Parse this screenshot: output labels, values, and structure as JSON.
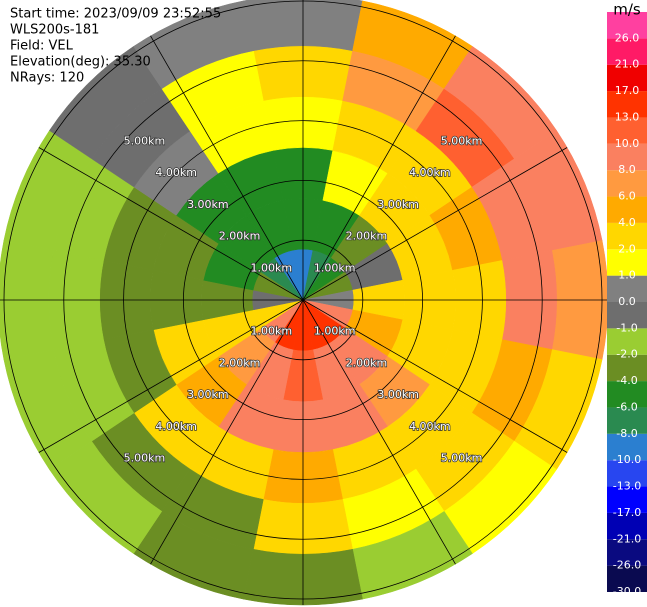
{
  "chart_data": {
    "type": "ppi",
    "info": [
      "Start time: 2023/09/09 23:52:55",
      "WLS200s-181",
      "Field: VEL",
      "Elevation(deg): 35.30",
      "NRays: 120"
    ],
    "rlim": [
      0,
      5.1
    ],
    "range_rings": [
      {
        "value": 1,
        "label": "1.00km"
      },
      {
        "value": 2,
        "label": "2.00km"
      },
      {
        "value": 3,
        "label": "3.00km"
      },
      {
        "value": 4,
        "label": "4.00km"
      },
      {
        "value": 5,
        "label": "5.00km"
      }
    ],
    "field": [
      [
        -9,
        -7,
        -5,
        -3,
        0,
        8,
        14,
        15,
        15,
        14,
        9,
        3,
        -1,
        -4,
        -7,
        -9
      ],
      [
        -6,
        -5,
        -4,
        -1,
        2,
        5,
        9,
        9,
        11,
        9,
        7,
        3,
        -3,
        -5,
        -6,
        -6
      ],
      [
        -5,
        1,
        2,
        2,
        2,
        3,
        6,
        9,
        9,
        8,
        5,
        2,
        -3,
        -4,
        -5,
        -5
      ],
      [
        1,
        2,
        2,
        5,
        3,
        3,
        2,
        2,
        4,
        2,
        2,
        -3,
        -3,
        -3,
        0,
        1
      ],
      [
        2,
        7,
        12,
        9,
        8,
        5,
        2,
        1,
        2,
        -3,
        -3,
        -2,
        -2,
        -2,
        -1,
        1
      ],
      [
        0,
        5,
        8,
        8,
        6,
        3,
        1,
        -2,
        -3,
        -3,
        -2,
        -2,
        -2,
        -2,
        -1,
        0
      ]
    ],
    "colorbar": {
      "title": "m/s",
      "ticks": [
        {
          "value": -30,
          "label": "-30.0"
        },
        {
          "value": -26,
          "label": "-26.0"
        },
        {
          "value": -21,
          "label": "-21.0"
        },
        {
          "value": -17,
          "label": "-17.0"
        },
        {
          "value": -13,
          "label": "-13.0"
        },
        {
          "value": -10,
          "label": "-10.0"
        },
        {
          "value": -8,
          "label": "-8.0"
        },
        {
          "value": -6,
          "label": "-6.0"
        },
        {
          "value": -4,
          "label": "-4.0"
        },
        {
          "value": -2,
          "label": "-2.0"
        },
        {
          "value": -1,
          "label": "-1.0"
        },
        {
          "value": 0,
          "label": "0.0"
        },
        {
          "value": 1,
          "label": "1.0"
        },
        {
          "value": 2,
          "label": "2.0"
        },
        {
          "value": 4,
          "label": "4.0"
        },
        {
          "value": 6,
          "label": "6.0"
        },
        {
          "value": 8,
          "label": "8.0"
        },
        {
          "value": 10,
          "label": "10.0"
        },
        {
          "value": 13,
          "label": "13.0"
        },
        {
          "value": 17,
          "label": "17.0"
        },
        {
          "value": 21,
          "label": "21.0"
        },
        {
          "value": 26,
          "label": "26.0"
        }
      ],
      "colors": [
        "#0a0a50",
        "#0a0a80",
        "#0000b4",
        "#0000ff",
        "#2846f0",
        "#2b7fd0",
        "#2a8a50",
        "#228b22",
        "#6b8e23",
        "#9acd32",
        "#6e6e6e",
        "#808080",
        "#ffff00",
        "#ffd700",
        "#ffaa00",
        "#ff9a40",
        "#fa8060",
        "#ff6030",
        "#ff3300",
        "#f00000",
        "#ff1a66",
        "#ff40a0"
      ]
    }
  }
}
